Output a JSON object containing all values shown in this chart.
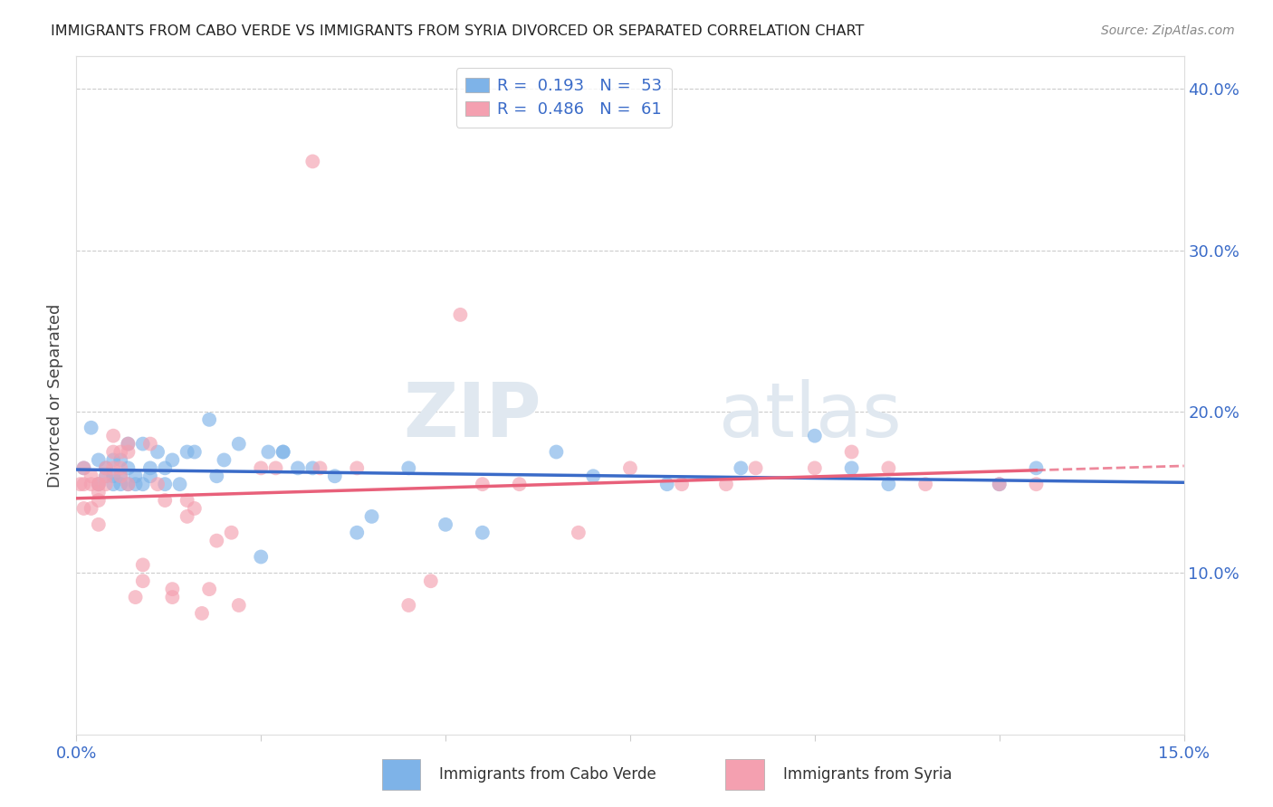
{
  "title": "IMMIGRANTS FROM CABO VERDE VS IMMIGRANTS FROM SYRIA DIVORCED OR SEPARATED CORRELATION CHART",
  "source": "Source: ZipAtlas.com",
  "ylabel": "Divorced or Separated",
  "legend_blue_R": "0.193",
  "legend_blue_N": "53",
  "legend_pink_R": "0.486",
  "legend_pink_N": "61",
  "cabo_verde_x": [
    0.001,
    0.002,
    0.003,
    0.003,
    0.004,
    0.004,
    0.005,
    0.005,
    0.005,
    0.006,
    0.006,
    0.006,
    0.007,
    0.007,
    0.007,
    0.008,
    0.008,
    0.009,
    0.009,
    0.01,
    0.01,
    0.011,
    0.012,
    0.012,
    0.013,
    0.014,
    0.015,
    0.016,
    0.018,
    0.019,
    0.02,
    0.022,
    0.025,
    0.026,
    0.028,
    0.028,
    0.03,
    0.032,
    0.035,
    0.038,
    0.04,
    0.045,
    0.05,
    0.055,
    0.065,
    0.07,
    0.08,
    0.09,
    0.1,
    0.105,
    0.11,
    0.125,
    0.13
  ],
  "cabo_verde_y": [
    0.165,
    0.19,
    0.17,
    0.155,
    0.16,
    0.165,
    0.17,
    0.155,
    0.16,
    0.155,
    0.16,
    0.17,
    0.18,
    0.155,
    0.165,
    0.155,
    0.16,
    0.155,
    0.18,
    0.165,
    0.16,
    0.175,
    0.165,
    0.155,
    0.17,
    0.155,
    0.175,
    0.175,
    0.195,
    0.16,
    0.17,
    0.18,
    0.11,
    0.175,
    0.175,
    0.175,
    0.165,
    0.165,
    0.16,
    0.125,
    0.135,
    0.165,
    0.13,
    0.125,
    0.175,
    0.16,
    0.155,
    0.165,
    0.185,
    0.165,
    0.155,
    0.155,
    0.165
  ],
  "syria_x": [
    0.0005,
    0.001,
    0.001,
    0.001,
    0.002,
    0.002,
    0.002,
    0.003,
    0.003,
    0.003,
    0.003,
    0.003,
    0.004,
    0.004,
    0.004,
    0.005,
    0.005,
    0.005,
    0.006,
    0.006,
    0.006,
    0.007,
    0.007,
    0.007,
    0.008,
    0.009,
    0.009,
    0.01,
    0.011,
    0.012,
    0.013,
    0.013,
    0.015,
    0.015,
    0.016,
    0.017,
    0.018,
    0.019,
    0.021,
    0.022,
    0.025,
    0.027,
    0.032,
    0.033,
    0.038,
    0.045,
    0.048,
    0.052,
    0.055,
    0.06,
    0.068,
    0.075,
    0.082,
    0.088,
    0.092,
    0.1,
    0.105,
    0.11,
    0.115,
    0.125,
    0.13
  ],
  "syria_y": [
    0.155,
    0.165,
    0.155,
    0.14,
    0.16,
    0.155,
    0.14,
    0.155,
    0.155,
    0.15,
    0.145,
    0.13,
    0.165,
    0.16,
    0.155,
    0.185,
    0.175,
    0.165,
    0.175,
    0.165,
    0.16,
    0.18,
    0.175,
    0.155,
    0.085,
    0.095,
    0.105,
    0.18,
    0.155,
    0.145,
    0.09,
    0.085,
    0.145,
    0.135,
    0.14,
    0.075,
    0.09,
    0.12,
    0.125,
    0.08,
    0.165,
    0.165,
    0.355,
    0.165,
    0.165,
    0.08,
    0.095,
    0.26,
    0.155,
    0.155,
    0.125,
    0.165,
    0.155,
    0.155,
    0.165,
    0.165,
    0.175,
    0.165,
    0.155,
    0.155,
    0.155
  ],
  "blue_color": "#7EB3E8",
  "pink_color": "#F4A0B0",
  "blue_line_color": "#3A6BC8",
  "pink_line_color": "#E8607A",
  "watermark_zip": "ZIP",
  "watermark_atlas": "atlas",
  "background_color": "#FFFFFF",
  "xlim": [
    0.0,
    0.15
  ],
  "ylim": [
    0.0,
    0.42
  ],
  "ytick_right_positions": [
    0.1,
    0.2,
    0.3,
    0.4
  ],
  "ytick_right_labels": [
    "10.0%",
    "20.0%",
    "30.0%",
    "40.0%"
  ],
  "xtick_positions": [
    0.0,
    0.025,
    0.05,
    0.075,
    0.1,
    0.125,
    0.15
  ],
  "xtick_labels": [
    "0.0%",
    "",
    "",
    "",
    "",
    "",
    "15.0%"
  ],
  "legend_label_cv": "Immigrants from Cabo Verde",
  "legend_label_sy": "Immigrants from Syria"
}
